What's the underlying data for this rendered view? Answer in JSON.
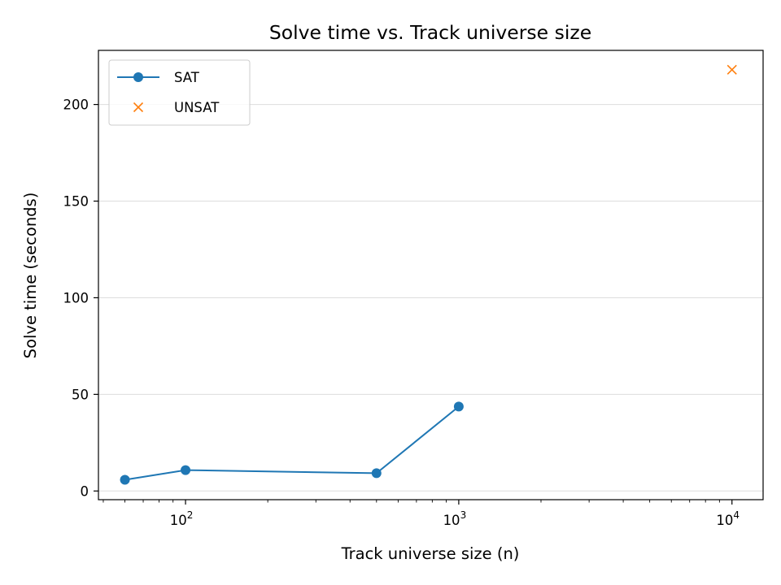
{
  "chart_data": {
    "type": "line",
    "title": "Solve time vs. Track universe size",
    "xlabel": "Track universe size (n)",
    "ylabel": "Solve time (seconds)",
    "xscale": "log",
    "xlim": [
      48,
      13000
    ],
    "ylim": [
      -4.5,
      228
    ],
    "grid": "horizontal",
    "legend_position": "top-left",
    "y_ticks": [
      0,
      50,
      100,
      150,
      200
    ],
    "x_ticks": [
      {
        "value": 100,
        "base": "10",
        "exp": "2"
      },
      {
        "value": 1000,
        "base": "10",
        "exp": "3"
      },
      {
        "value": 10000,
        "base": "10",
        "exp": "4"
      }
    ],
    "series": [
      {
        "name": "SAT",
        "color": "#1f77b4",
        "marker": "circle",
        "line": true,
        "x": [
          60,
          100,
          500,
          1000
        ],
        "y": [
          5.8,
          10.8,
          9.2,
          43.7
        ]
      },
      {
        "name": "UNSAT",
        "color": "#ff7f0e",
        "marker": "x",
        "line": false,
        "x": [
          10000
        ],
        "y": [
          218
        ]
      }
    ]
  }
}
